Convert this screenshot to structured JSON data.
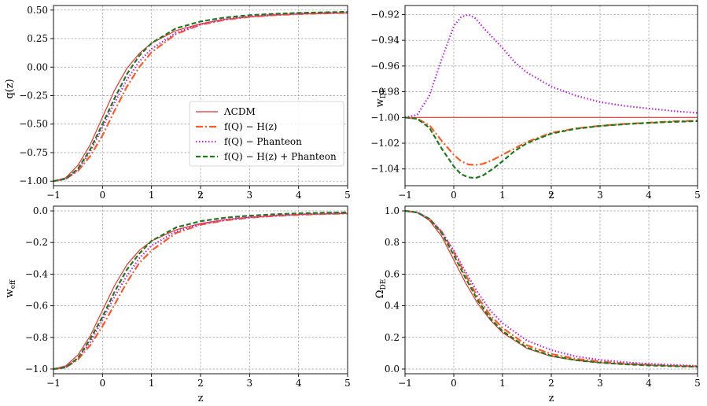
{
  "colors": {
    "lcdm": "#e8322e",
    "hz": "#ff5a1f",
    "pantheon": "#c021e8",
    "combined": "#1f7a1f"
  },
  "legend": {
    "location": "lower-right of top-left panel",
    "entries": [
      {
        "label": "ΛCDM",
        "style": "solid"
      },
      {
        "label": "f(Q) − H(z)",
        "style": "dashdot"
      },
      {
        "label": "f(Q) −  Phanteon",
        "style": "dotted"
      },
      {
        "label": "f(Q) − H(z) +  Phanteon",
        "style": "dashed"
      }
    ]
  },
  "chart_data": [
    {
      "type": "line",
      "id": "q",
      "xlabel": "z",
      "ylabel": "q(z)",
      "xlim": [
        -1,
        5
      ],
      "ylim": [
        -1.04,
        0.54
      ],
      "xticks": [
        -1,
        0,
        1,
        2,
        3,
        4,
        5
      ],
      "yticks": [
        -1.0,
        -0.75,
        -0.5,
        -0.25,
        0.0,
        0.25,
        0.5
      ],
      "ytick_labels": [
        "−1.00",
        "−0.75",
        "−0.50",
        "−0.25",
        "0.00",
        "0.25",
        "0.50"
      ],
      "grid": true,
      "x": [
        -1,
        -0.75,
        -0.5,
        -0.25,
        0,
        0.25,
        0.5,
        0.75,
        1,
        1.5,
        2,
        2.5,
        3,
        3.5,
        4,
        4.5,
        5
      ],
      "series": [
        {
          "name": "ΛCDM",
          "values": [
            -1.0,
            -0.97,
            -0.86,
            -0.68,
            -0.44,
            -0.2,
            -0.01,
            0.12,
            0.21,
            0.32,
            0.38,
            0.42,
            0.44,
            0.455,
            0.465,
            0.47,
            0.475
          ]
        },
        {
          "name": "f(Q) − H(z)",
          "values": [
            -1.0,
            -0.98,
            -0.91,
            -0.78,
            -0.6,
            -0.38,
            -0.17,
            0.0,
            0.13,
            0.29,
            0.37,
            0.415,
            0.44,
            0.455,
            0.465,
            0.47,
            0.475
          ]
        },
        {
          "name": "f(Q) −  Phanteon",
          "values": [
            -1.0,
            -0.98,
            -0.9,
            -0.74,
            -0.53,
            -0.31,
            -0.11,
            0.05,
            0.16,
            0.3,
            0.375,
            0.42,
            0.445,
            0.46,
            0.47,
            0.475,
            0.48
          ]
        },
        {
          "name": "f(Q) − H(z) +  Phanteon",
          "values": [
            -1.0,
            -0.98,
            -0.89,
            -0.72,
            -0.5,
            -0.27,
            -0.06,
            0.1,
            0.21,
            0.34,
            0.4,
            0.435,
            0.455,
            0.467,
            0.475,
            0.48,
            0.485
          ]
        }
      ]
    },
    {
      "type": "line",
      "id": "wde",
      "xlabel": "z",
      "ylabel": "w_DE",
      "ylabel_main": "w",
      "ylabel_sub": "DE",
      "xlim": [
        -1,
        5
      ],
      "ylim": [
        -1.053,
        -0.913
      ],
      "xticks": [
        -1,
        0,
        1,
        2,
        3,
        4,
        5
      ],
      "yticks": [
        -1.04,
        -1.02,
        -1.0,
        -0.98,
        -0.96,
        -0.94,
        -0.92
      ],
      "ytick_labels": [
        "−1.04",
        "−1.02",
        "−1.00",
        "−0.98",
        "−0.96",
        "−0.94",
        "−0.92"
      ],
      "grid": true,
      "x": [
        -1,
        -0.75,
        -0.5,
        -0.25,
        0,
        0.15,
        0.3,
        0.45,
        0.6,
        0.8,
        1,
        1.25,
        1.5,
        2,
        2.5,
        3,
        3.5,
        4,
        4.5,
        5
      ],
      "series": [
        {
          "name": "ΛCDM",
          "values": [
            -1.0,
            -1.0,
            -1.0,
            -1.0,
            -1.0,
            -1.0,
            -1.0,
            -1.0,
            -1.0,
            -1.0,
            -1.0,
            -1.0,
            -1.0,
            -1.0,
            -1.0,
            -1.0,
            -1.0,
            -1.0,
            -1.0,
            -1.0
          ]
        },
        {
          "name": "f(Q) − H(z)",
          "values": [
            -1.0,
            -1.001,
            -1.006,
            -1.018,
            -1.029,
            -1.034,
            -1.0365,
            -1.037,
            -1.036,
            -1.033,
            -1.029,
            -1.024,
            -1.019,
            -1.012,
            -1.0085,
            -1.0065,
            -1.005,
            -1.004,
            -1.003,
            -1.0025
          ]
        },
        {
          "name": "f(Q) −  Phanteon",
          "values": [
            -1.0,
            -0.998,
            -0.983,
            -0.955,
            -0.929,
            -0.922,
            -0.92,
            -0.923,
            -0.93,
            -0.938,
            -0.946,
            -0.957,
            -0.965,
            -0.976,
            -0.983,
            -0.988,
            -0.991,
            -0.993,
            -0.995,
            -0.9965
          ]
        },
        {
          "name": "f(Q) − H(z) +  Phanteon",
          "values": [
            -1.0,
            -1.001,
            -1.008,
            -1.024,
            -1.038,
            -1.044,
            -1.0465,
            -1.047,
            -1.045,
            -1.04,
            -1.034,
            -1.026,
            -1.02,
            -1.0125,
            -1.0088,
            -1.0066,
            -1.0052,
            -1.0042,
            -1.0034,
            -1.0028
          ]
        }
      ]
    },
    {
      "type": "line",
      "id": "weff",
      "xlabel": "z",
      "ylabel": "w_eff",
      "ylabel_main": "w",
      "ylabel_sub": "eff",
      "xlim": [
        -1,
        5
      ],
      "ylim": [
        -1.03,
        0.03
      ],
      "xticks": [
        -1,
        0,
        1,
        2,
        3,
        4,
        5
      ],
      "yticks": [
        -1.0,
        -0.8,
        -0.6,
        -0.4,
        -0.2,
        0.0
      ],
      "ytick_labels": [
        "−1.0",
        "−0.8",
        "−0.6",
        "−0.4",
        "−0.2",
        "0.0"
      ],
      "grid": true,
      "x": [
        -1,
        -0.75,
        -0.5,
        -0.25,
        0,
        0.25,
        0.5,
        0.75,
        1,
        1.5,
        2,
        2.5,
        3,
        3.5,
        4,
        4.5,
        5
      ],
      "series": [
        {
          "name": "ΛCDM",
          "values": [
            -1.0,
            -0.98,
            -0.91,
            -0.79,
            -0.63,
            -0.47,
            -0.34,
            -0.25,
            -0.19,
            -0.12,
            -0.08,
            -0.055,
            -0.04,
            -0.03,
            -0.023,
            -0.02,
            -0.017
          ]
        },
        {
          "name": "f(Q) − H(z)",
          "values": [
            -1.0,
            -0.99,
            -0.94,
            -0.85,
            -0.73,
            -0.59,
            -0.45,
            -0.33,
            -0.25,
            -0.14,
            -0.088,
            -0.06,
            -0.043,
            -0.032,
            -0.025,
            -0.02,
            -0.017
          ]
        },
        {
          "name": "f(Q) −  Phanteon",
          "values": [
            -1.0,
            -0.99,
            -0.93,
            -0.83,
            -0.69,
            -0.54,
            -0.41,
            -0.3,
            -0.22,
            -0.13,
            -0.083,
            -0.057,
            -0.04,
            -0.03,
            -0.022,
            -0.017,
            -0.014
          ]
        },
        {
          "name": "f(Q) − H(z) +  Phanteon",
          "values": [
            -1.0,
            -0.99,
            -0.93,
            -0.81,
            -0.67,
            -0.51,
            -0.37,
            -0.27,
            -0.19,
            -0.105,
            -0.065,
            -0.043,
            -0.03,
            -0.022,
            -0.016,
            -0.012,
            -0.01
          ]
        }
      ]
    },
    {
      "type": "line",
      "id": "omega",
      "xlabel": "z",
      "ylabel": "Ω_DE",
      "ylabel_main": "Ω",
      "ylabel_sub": "DE",
      "xlim": [
        -1,
        5
      ],
      "ylim": [
        -0.03,
        1.03
      ],
      "xticks": [
        -1,
        0,
        1,
        2,
        3,
        4,
        5
      ],
      "yticks": [
        0.0,
        0.2,
        0.4,
        0.6,
        0.8,
        1.0
      ],
      "ytick_labels": [
        "0.0",
        "0.2",
        "0.4",
        "0.6",
        "0.8",
        "1.0"
      ],
      "grid": true,
      "x": [
        -1,
        -0.75,
        -0.5,
        -0.25,
        0,
        0.25,
        0.5,
        0.75,
        1,
        1.5,
        2,
        2.5,
        3,
        3.5,
        4,
        4.5,
        5
      ],
      "series": [
        {
          "name": "ΛCDM",
          "values": [
            1.0,
            0.99,
            0.94,
            0.84,
            0.69,
            0.54,
            0.41,
            0.31,
            0.23,
            0.13,
            0.08,
            0.055,
            0.04,
            0.03,
            0.024,
            0.019,
            0.015
          ]
        },
        {
          "name": "f(Q) − H(z)",
          "values": [
            1.0,
            0.99,
            0.95,
            0.87,
            0.74,
            0.59,
            0.45,
            0.34,
            0.26,
            0.15,
            0.095,
            0.065,
            0.047,
            0.035,
            0.027,
            0.021,
            0.017
          ]
        },
        {
          "name": "f(Q) −  Phanteon",
          "values": [
            1.0,
            0.99,
            0.95,
            0.87,
            0.75,
            0.61,
            0.48,
            0.37,
            0.29,
            0.18,
            0.12,
            0.08,
            0.058,
            0.043,
            0.033,
            0.026,
            0.02
          ]
        },
        {
          "name": "f(Q) − H(z) +  Phanteon",
          "values": [
            1.0,
            0.99,
            0.95,
            0.86,
            0.72,
            0.57,
            0.43,
            0.32,
            0.24,
            0.135,
            0.083,
            0.056,
            0.04,
            0.03,
            0.023,
            0.018,
            0.014
          ]
        }
      ]
    }
  ]
}
